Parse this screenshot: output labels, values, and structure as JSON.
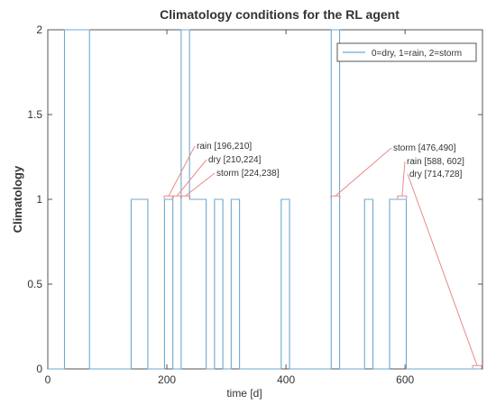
{
  "chart_data": {
    "type": "line",
    "title": "Climatology conditions for the RL agent",
    "xlabel": "time [d]",
    "ylabel": "Climatology",
    "xlim": [
      0,
      730
    ],
    "ylim": [
      0,
      2
    ],
    "xticks": [
      "0",
      "200",
      "400",
      "600"
    ],
    "yticks": [
      "0",
      "0.5",
      "1",
      "1.5",
      "2"
    ],
    "legend_position": "top-right",
    "grid": false,
    "series_color": "#6fa8d0",
    "annotation_color": "#e88a8a",
    "series": [
      {
        "name": "0=dry, 1=rain, 2=storm",
        "segments": [
          [
            0,
            0
          ],
          [
            28,
            0
          ],
          [
            28,
            2
          ],
          [
            70,
            2
          ],
          [
            70,
            0
          ],
          [
            140,
            0
          ],
          [
            140,
            1
          ],
          [
            168,
            1
          ],
          [
            168,
            0
          ],
          [
            196,
            0
          ],
          [
            196,
            1
          ],
          [
            210,
            1
          ],
          [
            210,
            0
          ],
          [
            224,
            0
          ],
          [
            224,
            2
          ],
          [
            238,
            2
          ],
          [
            238,
            1
          ],
          [
            266,
            1
          ],
          [
            266,
            0
          ],
          [
            280,
            0
          ],
          [
            280,
            1
          ],
          [
            294,
            1
          ],
          [
            294,
            0
          ],
          [
            308,
            0
          ],
          [
            308,
            1
          ],
          [
            322,
            1
          ],
          [
            322,
            0
          ],
          [
            392,
            0
          ],
          [
            392,
            1
          ],
          [
            406,
            1
          ],
          [
            406,
            0
          ],
          [
            476,
            0
          ],
          [
            476,
            2
          ],
          [
            490,
            2
          ],
          [
            490,
            0
          ],
          [
            532,
            0
          ],
          [
            532,
            1
          ],
          [
            546,
            1
          ],
          [
            546,
            0
          ],
          [
            574,
            0
          ],
          [
            574,
            1
          ],
          [
            602,
            1
          ],
          [
            602,
            0
          ],
          [
            714,
            0
          ],
          [
            728,
            0
          ]
        ]
      }
    ],
    "annotations": [
      {
        "text": "rain [196,210]",
        "x": 203,
        "y": 1.02
      },
      {
        "text": "dry [210,224]",
        "x": 217,
        "y": 1.02
      },
      {
        "text": "storm [224,238]",
        "x": 231,
        "y": 1.02
      },
      {
        "text": "storm [476,490]",
        "x": 483,
        "y": 1.02
      },
      {
        "text": "rain [588, 602]",
        "x": 595,
        "y": 1.02
      },
      {
        "text": "dry [714,728]",
        "x": 721,
        "y": 0.02
      }
    ]
  }
}
